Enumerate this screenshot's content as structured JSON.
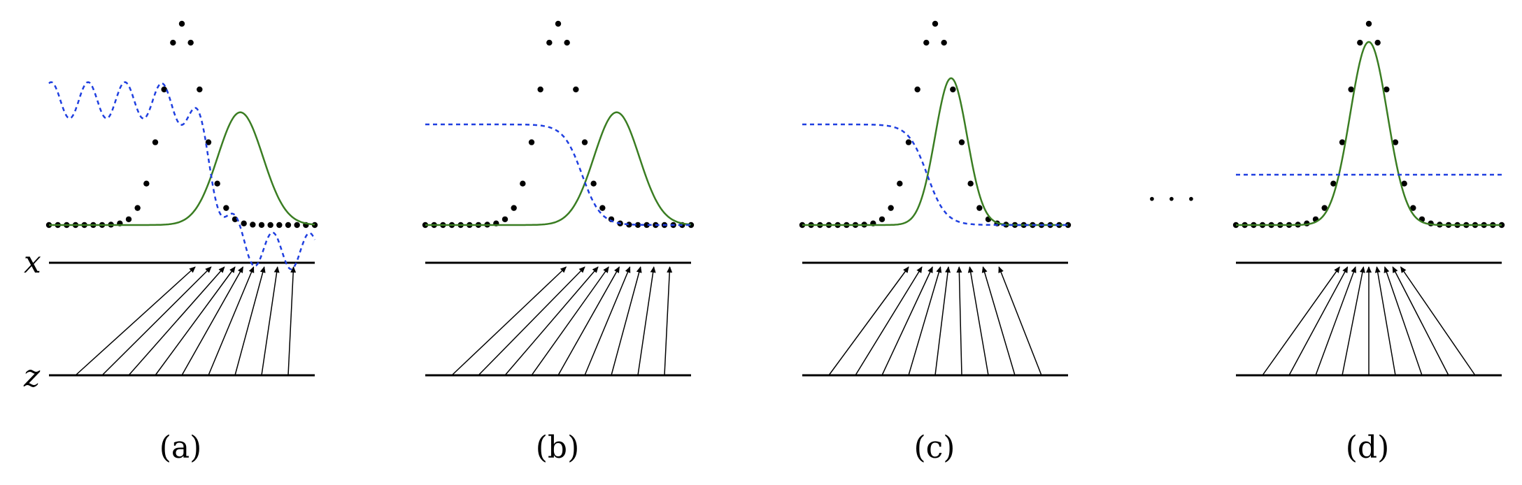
{
  "axis_labels": {
    "x": "x",
    "z": "z"
  },
  "ellipsis": "· · ·",
  "colors": {
    "data": "#000000",
    "generator": "#3a7d22",
    "discriminator": "#1f3fe0",
    "mapping": "#000000"
  },
  "panels": [
    {
      "caption": "(a)",
      "discriminator": "oscillating",
      "generator_center": 0.72,
      "generator_width": 0.085,
      "generator_peak": 0.56,
      "mapping_targets": [
        0.55,
        0.61,
        0.66,
        0.7,
        0.73,
        0.77,
        0.81,
        0.86,
        0.92
      ],
      "mapping_sources": [
        0.1,
        0.2,
        0.3,
        0.4,
        0.5,
        0.6,
        0.7,
        0.8,
        0.9
      ]
    },
    {
      "caption": "(b)",
      "discriminator": "sigmoid_high_to_low",
      "generator_center": 0.72,
      "generator_width": 0.085,
      "generator_peak": 0.56,
      "mapping_targets": [
        0.53,
        0.6,
        0.65,
        0.69,
        0.73,
        0.77,
        0.81,
        0.86,
        0.92
      ],
      "mapping_sources": [
        0.1,
        0.2,
        0.3,
        0.4,
        0.5,
        0.6,
        0.7,
        0.8,
        0.9
      ]
    },
    {
      "caption": "(c)",
      "discriminator": "sigmoid_high_to_low",
      "generator_center": 0.56,
      "generator_width": 0.06,
      "generator_peak": 0.73,
      "mapping_targets": [
        0.4,
        0.45,
        0.49,
        0.52,
        0.55,
        0.59,
        0.63,
        0.68,
        0.74
      ],
      "mapping_sources": [
        0.1,
        0.2,
        0.3,
        0.4,
        0.5,
        0.6,
        0.7,
        0.8,
        0.9
      ]
    },
    {
      "caption": "(d)",
      "discriminator": "flat",
      "generator_center": 0.5,
      "generator_width": 0.07,
      "generator_peak": 0.91,
      "mapping_targets": [
        0.39,
        0.42,
        0.45,
        0.48,
        0.5,
        0.53,
        0.56,
        0.59,
        0.62
      ],
      "mapping_sources": [
        0.1,
        0.2,
        0.3,
        0.4,
        0.5,
        0.6,
        0.7,
        0.8,
        0.9
      ]
    }
  ]
}
